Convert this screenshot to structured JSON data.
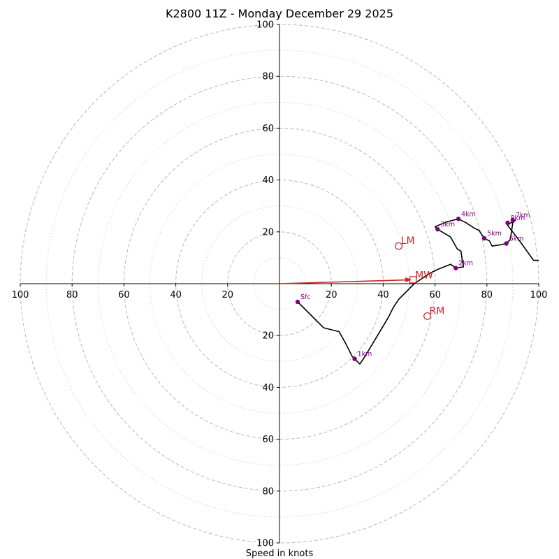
{
  "chart_data": {
    "type": "line",
    "title": "K2800 11Z - Monday December 29 2025",
    "xlabel": "Speed in knots",
    "ylabel": "",
    "units": "knots",
    "xlim": [
      -100,
      100
    ],
    "ylim": [
      -100,
      100
    ],
    "x_ticks": [
      -100,
      -80,
      -60,
      -40,
      -20,
      20,
      40,
      60,
      80,
      100
    ],
    "y_ticks": [
      -100,
      -80,
      -60,
      -40,
      -20,
      20,
      40,
      60,
      80,
      100
    ],
    "tick_labels_abs": true,
    "rings": {
      "dashed": [
        20,
        40,
        60,
        80,
        100
      ],
      "dotted": [
        10,
        30,
        50,
        70,
        90
      ]
    },
    "grid": true,
    "colors": {
      "hodograph": "#000000",
      "height_markers": "#800080",
      "storm_motion": "#cc2222",
      "ring": "#b8b8b8"
    },
    "hodograph": [
      [
        7,
        -7
      ],
      [
        17,
        -17
      ],
      [
        23,
        -18.5
      ],
      [
        25.5,
        -23
      ],
      [
        28,
        -28
      ],
      [
        31,
        -31
      ],
      [
        33,
        -28
      ],
      [
        36,
        -23
      ],
      [
        39,
        -18
      ],
      [
        42,
        -13
      ],
      [
        44,
        -9
      ],
      [
        45,
        -7.5
      ],
      [
        46,
        -6
      ],
      [
        52,
        0
      ],
      [
        55,
        2
      ],
      [
        58,
        4
      ],
      [
        61,
        5.5
      ],
      [
        66,
        7.5
      ],
      [
        68,
        6
      ],
      [
        71,
        6.5
      ],
      [
        70.5,
        9
      ],
      [
        70,
        12.5
      ],
      [
        68.5,
        13.5
      ],
      [
        66,
        18
      ],
      [
        61,
        21
      ],
      [
        60,
        22
      ],
      [
        65,
        24
      ],
      [
        69,
        25
      ],
      [
        72,
        23.5
      ],
      [
        75,
        21.5
      ],
      [
        77,
        20.5
      ],
      [
        79,
        17.5
      ],
      [
        81,
        16.5
      ],
      [
        82,
        14.5
      ],
      [
        85,
        15
      ],
      [
        87.5,
        15.5
      ],
      [
        89,
        17
      ],
      [
        89.5,
        20
      ],
      [
        90,
        23.5
      ],
      [
        91,
        24.5
      ],
      [
        88.5,
        23
      ],
      [
        88,
        22.5
      ],
      [
        93,
        16
      ],
      [
        98,
        9
      ],
      [
        100,
        9
      ]
    ],
    "height_markers": [
      {
        "label": "Sfc",
        "x": 7,
        "y": -7
      },
      {
        "label": "1km",
        "x": 29,
        "y": -29
      },
      {
        "label": "2km",
        "x": 68,
        "y": 6
      },
      {
        "label": "3km",
        "x": 61,
        "y": 21
      },
      {
        "label": "4km",
        "x": 69,
        "y": 25
      },
      {
        "label": "5km",
        "x": 79,
        "y": 17.5
      },
      {
        "label": "6km",
        "x": 87.5,
        "y": 15.5
      },
      {
        "label": "7km",
        "x": 90,
        "y": 24.5
      },
      {
        "label": "8km",
        "x": 88,
        "y": 23.5
      }
    ],
    "storm_motion": {
      "LM": {
        "label": "LM",
        "x": 46,
        "y": 14.5
      },
      "RM": {
        "label": "RM",
        "x": 57,
        "y": -12.5
      },
      "MW": {
        "label": "MW",
        "x": 51.5,
        "y": 1.5
      }
    }
  }
}
